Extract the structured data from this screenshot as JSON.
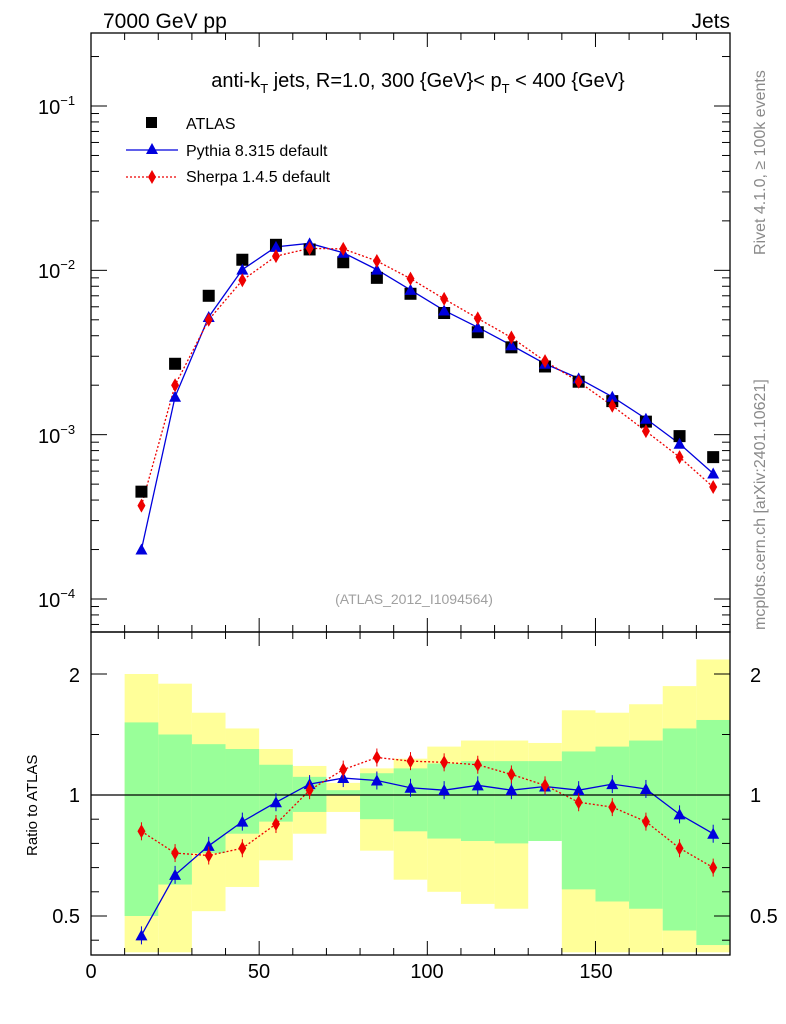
{
  "header": {
    "energy_label": "7000 GeV pp",
    "process_label": "Jets"
  },
  "side_labels": {
    "rivet": "Rivet 4.1.0, ≥ 100k events",
    "mcplots": "mcplots.cern.ch [arXiv:2401.10621]"
  },
  "chart_data": [
    {
      "type": "scatter",
      "title": "anti-k_T jets, R=1.0, 300 {GeV}< p_T < 400 {GeV}",
      "title_parts": {
        "pre": "anti-k",
        "sub1": "T",
        "mid": " jets, R=1.0, 300 {GeV}< p",
        "sub2": "T",
        "post": " < 400 {GeV}"
      },
      "watermark": "(ATLAS_2012_I1094564)",
      "yscale": "log",
      "ylim": [
        6e-05,
        0.3
      ],
      "xlim": [
        0,
        190
      ],
      "ytick_labels": [
        {
          "value": 0.1,
          "base": "10",
          "exp": "−1"
        },
        {
          "value": 0.01,
          "base": "10",
          "exp": "−2"
        },
        {
          "value": 0.001,
          "base": "10",
          "exp": "−3"
        },
        {
          "value": 0.0001,
          "base": "10",
          "exp": "−4"
        }
      ],
      "legend_position": "top-left",
      "series": [
        {
          "name": "ATLAS",
          "marker": "square",
          "color": "#000000",
          "x": [
            15,
            25,
            35,
            45,
            55,
            65,
            75,
            85,
            95,
            105,
            115,
            125,
            135,
            145,
            155,
            165,
            175,
            185
          ],
          "y": [
            0.00045,
            0.0027,
            0.007,
            0.0116,
            0.0143,
            0.0134,
            0.0112,
            0.009,
            0.0072,
            0.0055,
            0.0042,
            0.0034,
            0.0026,
            0.0021,
            0.0016,
            0.0012,
            0.00098,
            0.00073
          ]
        },
        {
          "name": "Pythia 8.315 default",
          "marker": "triangle",
          "color": "#0000dd",
          "line": "solid",
          "x": [
            15,
            25,
            35,
            45,
            55,
            65,
            75,
            85,
            95,
            105,
            115,
            125,
            135,
            145,
            155,
            165,
            175,
            185
          ],
          "y": [
            0.0002,
            0.0017,
            0.0052,
            0.0101,
            0.0139,
            0.0146,
            0.0128,
            0.0101,
            0.0076,
            0.0057,
            0.0045,
            0.0035,
            0.0027,
            0.0022,
            0.0017,
            0.00125,
            0.00088,
            0.00058
          ]
        },
        {
          "name": "Sherpa 1.4.5 default",
          "marker": "diamond",
          "color": "#ee0000",
          "line": "dotted",
          "x": [
            15,
            25,
            35,
            45,
            55,
            65,
            75,
            85,
            95,
            105,
            115,
            125,
            135,
            145,
            155,
            165,
            175,
            185
          ],
          "y": [
            0.00037,
            0.002,
            0.005,
            0.0087,
            0.0122,
            0.0136,
            0.0135,
            0.0114,
            0.0089,
            0.0067,
            0.0051,
            0.0039,
            0.0028,
            0.0021,
            0.0015,
            0.00105,
            0.00073,
            0.00048
          ]
        }
      ]
    },
    {
      "type": "scatter",
      "ylabel": "Ratio to ATLAS",
      "xlim": [
        0,
        190
      ],
      "ylim": [
        0.35,
        2.3
      ],
      "xtick_labels": [
        "0",
        "50",
        "100",
        "150"
      ],
      "xticks": [
        0,
        50,
        100,
        150
      ],
      "ytick_labels": [
        "0.5",
        "1",
        "2"
      ],
      "yticks": [
        0.5,
        1,
        2
      ],
      "bands": {
        "edges": [
          10,
          20,
          30,
          40,
          50,
          60,
          70,
          80,
          90,
          100,
          110,
          120,
          130,
          140,
          150,
          160,
          170,
          180,
          190
        ],
        "yellow_lo": [
          0.35,
          0.35,
          0.52,
          0.62,
          0.73,
          0.84,
          0.93,
          0.77,
          0.65,
          0.6,
          0.55,
          0.53,
          0.84,
          0.35,
          0.35,
          0.35,
          0.35,
          0.35
        ],
        "yellow_hi": [
          2.0,
          1.92,
          1.68,
          1.55,
          1.38,
          1.24,
          1.1,
          1.22,
          1.3,
          1.4,
          1.45,
          1.45,
          1.43,
          1.7,
          1.68,
          1.75,
          1.9,
          2.12
        ],
        "green_lo": [
          0.5,
          0.63,
          0.76,
          0.84,
          0.89,
          0.93,
          1.0,
          0.9,
          0.85,
          0.82,
          0.81,
          0.8,
          0.81,
          0.61,
          0.56,
          0.53,
          0.44,
          0.38
        ],
        "green_hi": [
          1.6,
          1.5,
          1.42,
          1.38,
          1.25,
          1.15,
          1.04,
          1.18,
          1.22,
          1.26,
          1.28,
          1.28,
          1.28,
          1.36,
          1.4,
          1.45,
          1.55,
          1.62
        ]
      },
      "series": [
        {
          "name": "Pythia 8.315 default",
          "marker": "triangle",
          "color": "#0000dd",
          "line": "solid",
          "x": [
            15,
            25,
            35,
            45,
            55,
            65,
            75,
            85,
            95,
            105,
            115,
            125,
            135,
            145,
            155,
            165,
            175,
            185
          ],
          "y": [
            0.42,
            0.67,
            0.79,
            0.89,
            0.97,
            1.09,
            1.14,
            1.12,
            1.06,
            1.04,
            1.08,
            1.04,
            1.07,
            1.04,
            1.09,
            1.05,
            0.92,
            0.84
          ]
        },
        {
          "name": "Sherpa 1.4.5 default",
          "marker": "diamond",
          "color": "#ee0000",
          "line": "dotted",
          "x": [
            15,
            25,
            35,
            45,
            55,
            65,
            75,
            85,
            95,
            105,
            115,
            125,
            135,
            145,
            155,
            165,
            175,
            185
          ],
          "y": [
            0.85,
            0.76,
            0.75,
            0.78,
            0.88,
            1.04,
            1.21,
            1.31,
            1.28,
            1.27,
            1.25,
            1.17,
            1.08,
            0.97,
            0.95,
            0.89,
            0.78,
            0.7
          ]
        }
      ]
    }
  ]
}
